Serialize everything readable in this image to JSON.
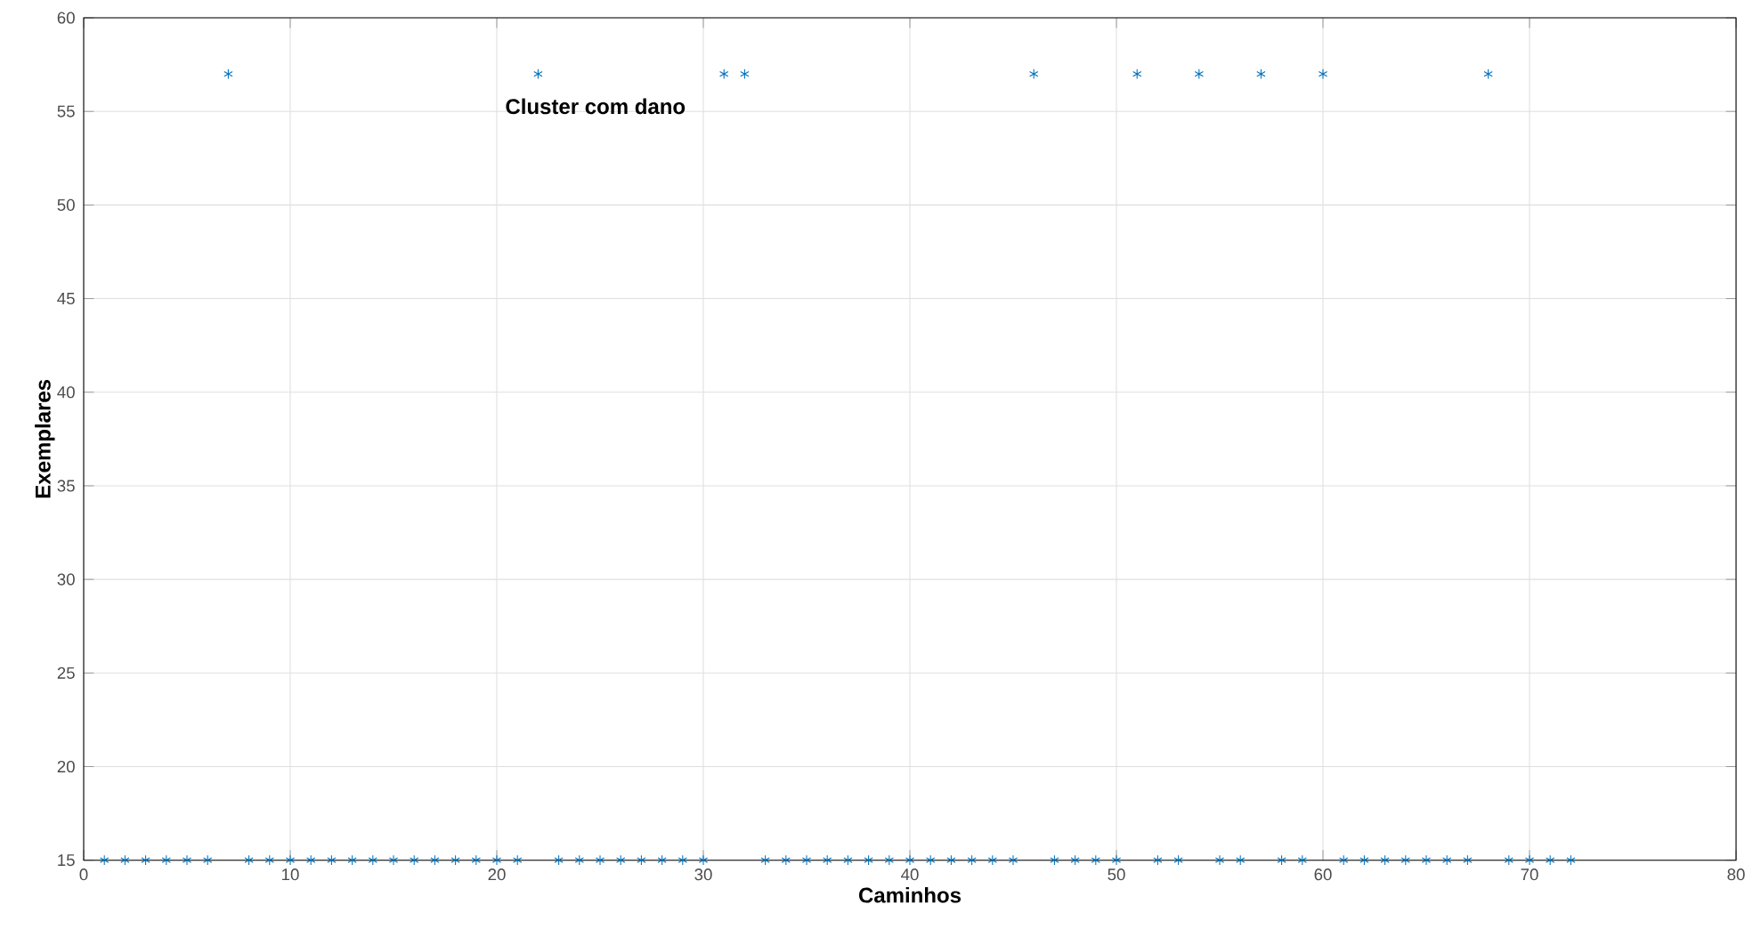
{
  "chart_data": {
    "type": "scatter",
    "xlabel": "Caminhos",
    "ylabel": "Exemplares",
    "annotations": [
      "Cluster com dano"
    ],
    "x": [
      1,
      2,
      3,
      4,
      5,
      6,
      7,
      8,
      9,
      10,
      11,
      12,
      13,
      14,
      15,
      16,
      17,
      18,
      19,
      20,
      21,
      22,
      23,
      24,
      25,
      26,
      27,
      28,
      29,
      30,
      31,
      32,
      33,
      34,
      35,
      36,
      37,
      38,
      39,
      40,
      41,
      42,
      43,
      44,
      45,
      46,
      47,
      48,
      49,
      50,
      51,
      52,
      53,
      54,
      55,
      56,
      57,
      58,
      59,
      60,
      61,
      62,
      63,
      64,
      65,
      66,
      67,
      68,
      69,
      70,
      71,
      72
    ],
    "values": [
      15,
      15,
      15,
      15,
      15,
      15,
      57,
      15,
      15,
      15,
      15,
      15,
      15,
      15,
      15,
      15,
      15,
      15,
      15,
      15,
      15,
      57,
      15,
      15,
      15,
      15,
      15,
      15,
      15,
      15,
      57,
      57,
      15,
      15,
      15,
      15,
      15,
      15,
      15,
      15,
      15,
      15,
      15,
      15,
      15,
      57,
      15,
      15,
      15,
      15,
      57,
      15,
      15,
      57,
      15,
      15,
      57,
      15,
      15,
      57,
      15,
      15,
      15,
      15,
      15,
      15,
      15,
      57,
      15,
      15,
      15,
      15
    ],
    "color": "#0072bd",
    "marker": "cross",
    "grid": true,
    "xlim": [
      0,
      80
    ],
    "ylim": [
      15,
      60
    ],
    "xticks": [
      0,
      10,
      20,
      30,
      40,
      50,
      60,
      70,
      80
    ],
    "yticks": [
      15,
      20,
      25,
      30,
      35,
      40,
      45,
      50,
      55,
      60
    ]
  }
}
